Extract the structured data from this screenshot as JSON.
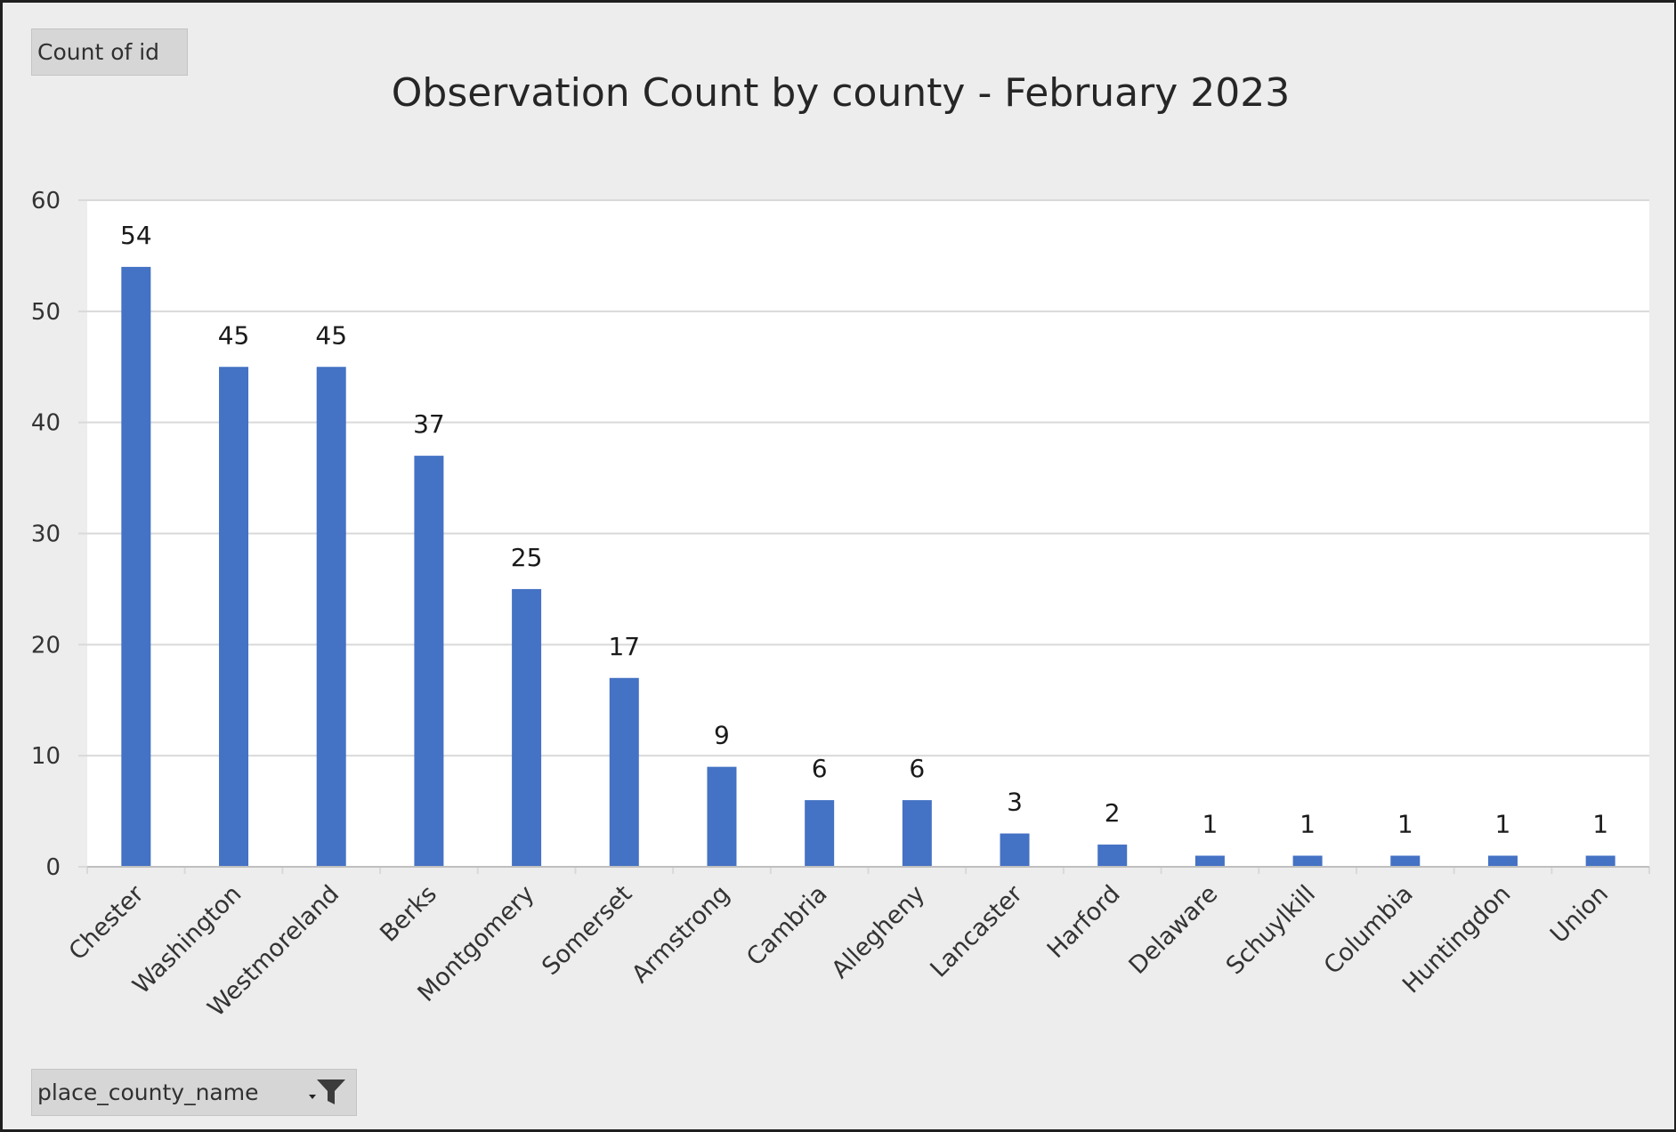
{
  "value_field_button": {
    "label": "Count of id"
  },
  "axis_field_button": {
    "label": "place_county_name",
    "icon": "filter-dropdown-icon"
  },
  "colors": {
    "bar": "#4472c4",
    "gridline": "#d9d9d9",
    "plot_background": "#ffffff",
    "chart_background": "#ededed"
  },
  "chart_data": {
    "type": "bar",
    "title": "Observation Count by county - February 2023",
    "xlabel": "",
    "ylabel": "",
    "categories": [
      "Chester",
      "Washington",
      "Westmoreland",
      "Berks",
      "Montgomery",
      "Somerset",
      "Armstrong",
      "Cambria",
      "Allegheny",
      "Lancaster",
      "Harford",
      "Delaware",
      "Schuylkill",
      "Columbia",
      "Huntingdon",
      "Union"
    ],
    "values": [
      54,
      45,
      45,
      37,
      25,
      17,
      9,
      6,
      6,
      3,
      2,
      1,
      1,
      1,
      1,
      1
    ],
    "ylim": [
      0,
      60
    ],
    "yticks": [
      0,
      10,
      20,
      30,
      40,
      50,
      60
    ],
    "grid": true,
    "legend": "none",
    "data_labels": true
  }
}
